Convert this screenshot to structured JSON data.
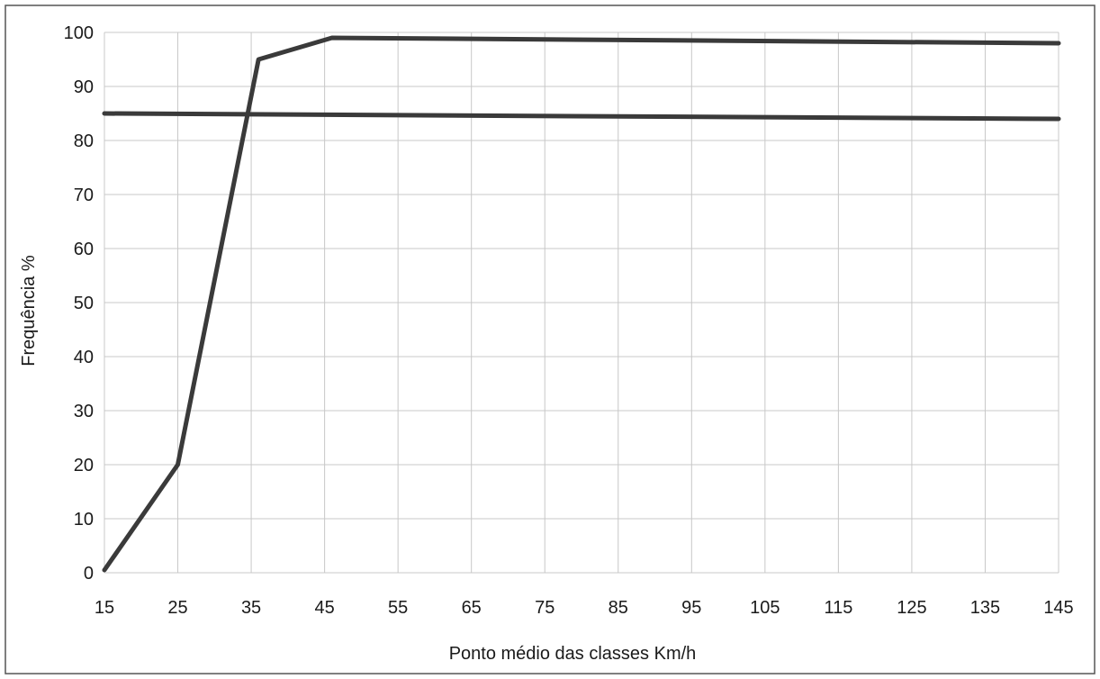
{
  "chart_data": {
    "type": "line",
    "title": "",
    "xlabel": "Ponto médio das classes Km/h",
    "ylabel": "Frequência %",
    "x_ticks": [
      15,
      25,
      35,
      45,
      55,
      65,
      75,
      85,
      95,
      105,
      115,
      125,
      135,
      145
    ],
    "y_ticks": [
      0,
      10,
      20,
      30,
      40,
      50,
      60,
      70,
      80,
      90,
      100
    ],
    "xlim": [
      15,
      145
    ],
    "ylim": [
      0,
      100
    ],
    "grid": true,
    "series": [
      {
        "values": [
          {
            "x": 15,
            "y": 0.5
          },
          {
            "x": 25,
            "y": 20
          },
          {
            "x": 36,
            "y": 95
          },
          {
            "x": 46,
            "y": 99
          },
          {
            "x": 145,
            "y": 98
          }
        ],
        "color": "#3a3a3a"
      },
      {
        "values": [
          {
            "x": 15,
            "y": 85
          },
          {
            "x": 145,
            "y": 84
          }
        ],
        "color": "#3a3a3a"
      }
    ]
  }
}
